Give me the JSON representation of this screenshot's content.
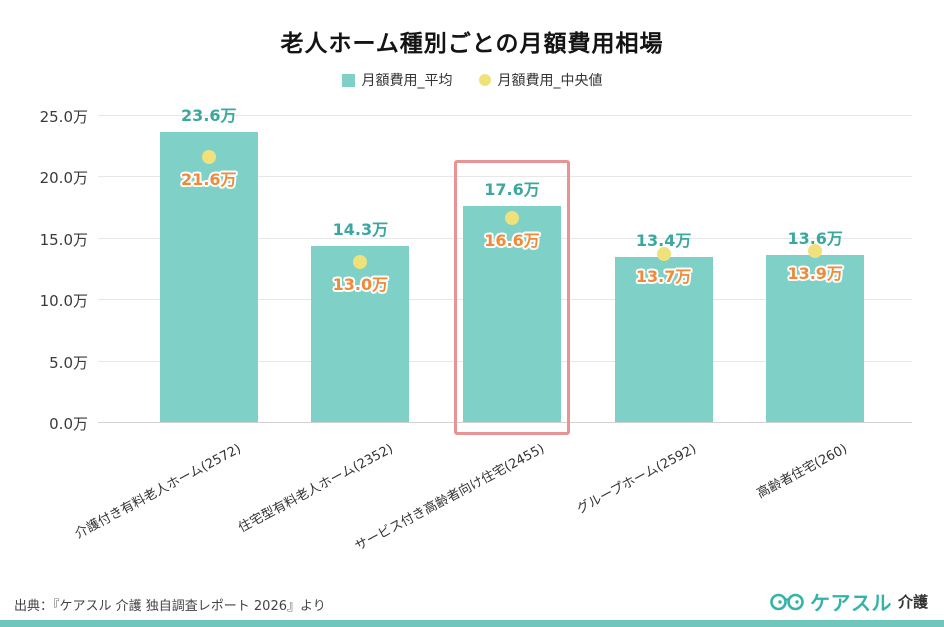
{
  "title": "老人ホーム種別ごとの月額費用相場",
  "legend": [
    {
      "label": "月額費用_平均"
    },
    {
      "label": "月額費用_中央値"
    }
  ],
  "chart_data": {
    "type": "bar",
    "title": "老人ホーム種別ごとの月額費用相場",
    "categories": [
      "介護付き有料老人ホーム(2572)",
      "住宅型有料老人ホーム(2352)",
      "サービス付き高齢者向け住宅(2455)",
      "グループホーム(2592)",
      "高齢者住宅(260)"
    ],
    "series": [
      {
        "name": "月額費用_平均",
        "values": [
          23.6,
          14.3,
          17.6,
          13.4,
          13.6
        ],
        "labels": [
          "23.6万",
          "14.3万",
          "17.6万",
          "13.4万",
          "13.6万"
        ]
      },
      {
        "name": "月額費用_中央値",
        "values": [
          21.6,
          13.0,
          16.6,
          13.7,
          13.9
        ],
        "labels": [
          "21.6万",
          "13.0万",
          "16.6万",
          "13.7万",
          "13.9万"
        ]
      }
    ],
    "unit": "万",
    "ylim": [
      0,
      25
    ],
    "yticks": [
      {
        "value": 0,
        "label": "0.0万"
      },
      {
        "value": 5,
        "label": "5.0万"
      },
      {
        "value": 10,
        "label": "10.0万"
      },
      {
        "value": 15,
        "label": "15.0万"
      },
      {
        "value": 20,
        "label": "20.0万"
      },
      {
        "value": 25,
        "label": "25.0万"
      }
    ],
    "highlight_index": 2,
    "grid": true,
    "legend_position": "top"
  },
  "footer": {
    "source": "出典：『ケアスル 介護 独自調査レポート 2026』より",
    "logo_text": "ケアスル",
    "logo_suffix": "介護"
  },
  "colors": {
    "bar": "#7fd0c6",
    "median_dot": "#efe27c",
    "average_label": "#3aa89f",
    "median_label": "#f08a38",
    "highlight_border": "#e89494",
    "accent_strip": "#6ec6bc",
    "logo": "#34b3a8"
  }
}
